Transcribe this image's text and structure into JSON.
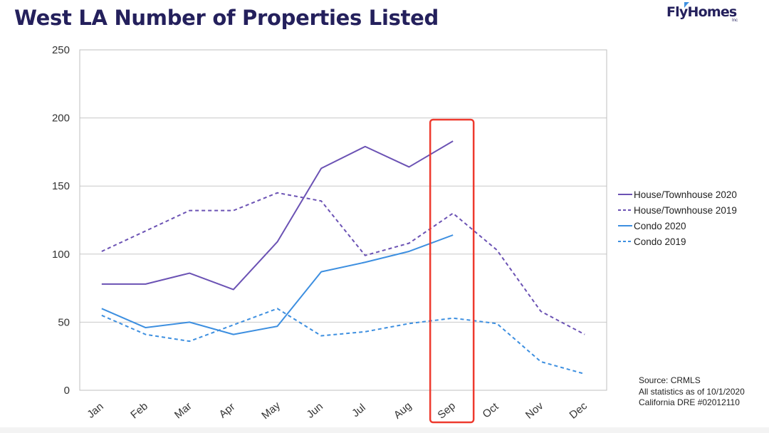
{
  "header": {
    "title": "West LA Number of Properties Listed",
    "logo_text": "FlyHomes",
    "logo_sub": "Inc"
  },
  "colors": {
    "title": "#24205c",
    "house": "#6b52b4",
    "condo": "#3d8fe0",
    "highlight": "#ee3a2e",
    "grid": "#c8c8c8"
  },
  "chart_data": {
    "type": "line",
    "title": "West LA Number of Properties Listed",
    "xlabel": "",
    "ylabel": "",
    "ylim": [
      0,
      250
    ],
    "yticks": [
      0,
      50,
      100,
      150,
      200,
      250
    ],
    "grid": true,
    "legend_position": "right",
    "categories": [
      "Jan",
      "Feb",
      "Mar",
      "Apr",
      "May",
      "Jun",
      "Jul",
      "Aug",
      "Sep",
      "Oct",
      "Nov",
      "Dec"
    ],
    "highlight_category": "Sep",
    "series": [
      {
        "name": "House/Townhouse 2020",
        "style": "solid",
        "color": "#6b52b4",
        "values": [
          78,
          78,
          86,
          74,
          109,
          163,
          179,
          164,
          183,
          null,
          null,
          null
        ]
      },
      {
        "name": "House/Townhouse 2019",
        "style": "dashed",
        "color": "#6b52b4",
        "values": [
          102,
          117,
          132,
          132,
          145,
          139,
          99,
          108,
          130,
          103,
          58,
          41
        ]
      },
      {
        "name": "Condo 2020",
        "style": "solid",
        "color": "#3d8fe0",
        "values": [
          60,
          46,
          50,
          41,
          47,
          87,
          94,
          102,
          114,
          null,
          null,
          null
        ]
      },
      {
        "name": "Condo 2019",
        "style": "dashed",
        "color": "#3d8fe0",
        "values": [
          55,
          41,
          36,
          48,
          60,
          40,
          43,
          49,
          53,
          49,
          21,
          12
        ]
      }
    ]
  },
  "footer": {
    "source_lines": [
      "Source: CRMLS",
      "All statistics as of 10/1/2020",
      "California DRE #02012110"
    ]
  }
}
